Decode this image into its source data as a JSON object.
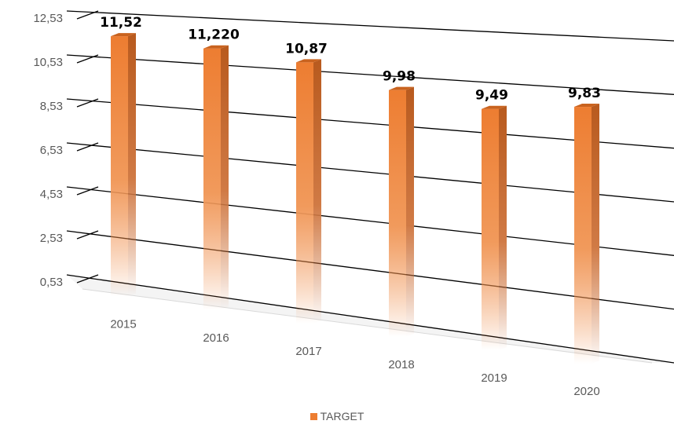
{
  "chart_data": {
    "type": "bar",
    "categories": [
      "2015",
      "2016",
      "2017",
      "2018",
      "2019",
      "2020"
    ],
    "series": [
      {
        "name": "TARGET",
        "values": [
          11.52,
          11.22,
          10.87,
          9.98,
          9.49,
          9.83
        ],
        "labels": [
          "11,52",
          "11,220",
          "10,87",
          "9,98",
          "9,49",
          "9,83"
        ],
        "color": "#ED7D31"
      }
    ],
    "y_ticks": [
      0.53,
      2.53,
      4.53,
      6.53,
      8.53,
      10.53,
      12.53
    ],
    "y_tick_labels": [
      "0,53",
      "2,53",
      "4,53",
      "6,53",
      "8,53",
      "10,53",
      "12,53"
    ],
    "ylim": [
      0.53,
      12.53
    ],
    "grid": true,
    "legend_position": "bottom",
    "style": "3d-perspective"
  }
}
